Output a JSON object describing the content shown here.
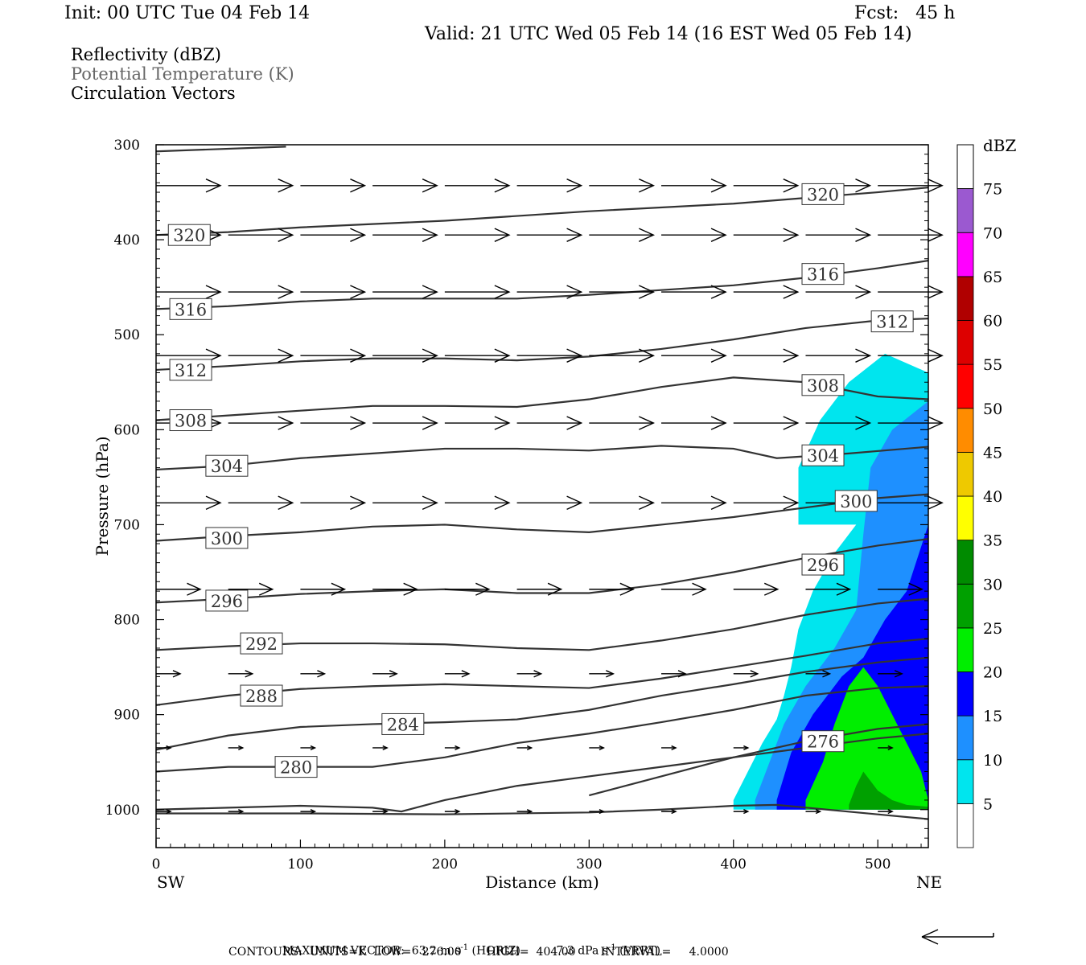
{
  "header": {
    "init": "Init: 00 UTC Tue 04 Feb 14",
    "fcst": "Fcst:   45 h",
    "valid": "Valid: 21 UTC Wed 05 Feb 14 (16 EST Wed 05 Feb 14)"
  },
  "fields": [
    "Reflectivity (dBZ)",
    "Potential Temperature (K)",
    "Circulation Vectors"
  ],
  "footer": {
    "max_vector_label": "MAXIMUM VECTOR:",
    "horiz": "63.2 m s",
    "horiz_unit": "(HORIZ)",
    "vert": "7.3 dPa s",
    "vert_unit": "(VERT)",
    "contours": "CONTOURS:  UNITS=K  LOW=   276.00       HIGH=  404.00       INTERVAL=     4.0000"
  },
  "colors": {
    "contour": "#333333",
    "scale": [
      "#ffffff",
      "#00e5ee",
      "#1e90ff",
      "#0000ff",
      "#00ee00",
      "#00a000",
      "#008b00",
      "#ffff00",
      "#eec900",
      "#ff8c00",
      "#ff0000",
      "#dd0000",
      "#b00000",
      "#ff00ff",
      "#9b59d0"
    ]
  },
  "chart_data": {
    "type": "cross-section",
    "xlabel": "Distance (km)",
    "ylabel": "Pressure (hPa)",
    "xlim": [
      0,
      535
    ],
    "ylim": [
      300,
      1040
    ],
    "x_ticks": [
      0,
      100,
      200,
      300,
      400,
      500
    ],
    "y_ticks": [
      300,
      400,
      500,
      600,
      700,
      800,
      900,
      1000
    ],
    "x_end_labels": [
      "SW",
      "NE"
    ],
    "colorbar": {
      "unit": "dBZ",
      "levels": [
        5,
        10,
        15,
        20,
        25,
        30,
        35,
        40,
        45,
        50,
        55,
        60,
        65,
        70,
        75
      ]
    },
    "isentropes": [
      {
        "label": "320",
        "x": [
          0,
          50,
          100,
          200,
          300,
          400,
          500,
          535
        ],
        "p": [
          395,
          392,
          387,
          380,
          370,
          362,
          350,
          345
        ],
        "label_x": 23,
        "label_p": 395
      },
      {
        "label": "320",
        "x": [
          450
        ],
        "p": [
          352
        ],
        "label_x": 462,
        "label_p": 352
      },
      {
        "label": "316",
        "x": [
          0,
          50,
          100,
          150,
          200,
          250,
          300,
          350,
          400,
          450,
          500,
          535
        ],
        "p": [
          473,
          470,
          465,
          462,
          462,
          462,
          458,
          453,
          448,
          440,
          430,
          422
        ],
        "label_x": 24,
        "label_p": 473
      },
      {
        "label": "316",
        "x": [
          462
        ],
        "p": [
          436
        ],
        "label_x": 462,
        "label_p": 436
      },
      {
        "label": "312",
        "x": [
          0,
          50,
          100,
          150,
          200,
          250,
          300,
          350,
          400,
          450,
          500,
          535
        ],
        "p": [
          537,
          533,
          528,
          525,
          525,
          527,
          523,
          515,
          505,
          493,
          485,
          483
        ],
        "label_x": 24,
        "label_p": 537
      },
      {
        "label": "312",
        "x": [
          510
        ],
        "p": [
          486
        ],
        "label_x": 510,
        "label_p": 486
      },
      {
        "label": "308",
        "x": [
          0,
          50,
          100,
          150,
          200,
          250,
          300,
          350,
          400,
          450,
          500,
          535
        ],
        "p": [
          590,
          585,
          580,
          575,
          575,
          576,
          568,
          555,
          545,
          550,
          565,
          568
        ],
        "label_x": 24,
        "label_p": 590
      },
      {
        "label": "308",
        "x": [
          462
        ],
        "p": [
          553
        ],
        "label_x": 462,
        "label_p": 553
      },
      {
        "label": "304",
        "x": [
          0,
          50,
          100,
          150,
          200,
          250,
          300,
          350,
          400,
          430,
          480,
          535
        ],
        "p": [
          642,
          638,
          630,
          625,
          620,
          620,
          622,
          617,
          620,
          630,
          625,
          618
        ],
        "label_x": 49,
        "label_p": 638
      },
      {
        "label": "304",
        "x": [
          462
        ],
        "p": [
          627
        ],
        "label_x": 462,
        "label_p": 627
      },
      {
        "label": "300",
        "x": [
          0,
          50,
          100,
          150,
          200,
          250,
          300,
          350,
          400,
          450,
          500,
          535
        ],
        "p": [
          717,
          712,
          708,
          702,
          700,
          705,
          708,
          700,
          692,
          682,
          672,
          668
        ],
        "label_x": 49,
        "label_p": 714
      },
      {
        "label": "300",
        "x": [
          485
        ],
        "p": [
          675
        ],
        "label_x": 485,
        "label_p": 675
      },
      {
        "label": "296",
        "x": [
          0,
          50,
          100,
          150,
          200,
          250,
          300,
          350,
          400,
          450,
          500,
          535
        ],
        "p": [
          782,
          778,
          773,
          770,
          768,
          772,
          772,
          763,
          750,
          735,
          722,
          715
        ],
        "label_x": 49,
        "label_p": 780
      },
      {
        "label": "296",
        "x": [
          462
        ],
        "p": [
          742
        ],
        "label_x": 462,
        "label_p": 742
      },
      {
        "label": "292",
        "x": [
          0,
          50,
          100,
          150,
          200,
          250,
          300,
          350,
          400,
          450,
          500,
          535
        ],
        "p": [
          832,
          828,
          825,
          825,
          826,
          830,
          832,
          822,
          810,
          795,
          783,
          778
        ],
        "label_x": 73,
        "label_p": 825
      },
      {
        "label": "288",
        "x": [
          0,
          50,
          100,
          150,
          200,
          250,
          300,
          350,
          400,
          450,
          500,
          535
        ],
        "p": [
          890,
          880,
          873,
          870,
          868,
          870,
          872,
          862,
          850,
          838,
          825,
          820
        ],
        "label_x": 73,
        "label_p": 880
      },
      {
        "label": "284",
        "x": [
          0,
          50,
          100,
          150,
          200,
          250,
          300,
          350,
          400,
          450,
          500,
          535
        ],
        "p": [
          937,
          922,
          913,
          910,
          908,
          905,
          895,
          880,
          868,
          855,
          845,
          840
        ],
        "label_x": 171,
        "label_p": 910
      },
      {
        "label": "280",
        "x": [
          0,
          50,
          100,
          150,
          200,
          250,
          300,
          350,
          400,
          450,
          500,
          535
        ],
        "p": [
          960,
          955,
          955,
          955,
          945,
          930,
          920,
          908,
          895,
          880,
          872,
          870
        ],
        "label_x": 97,
        "label_p": 955
      },
      {
        "label": "276",
        "x": [
          300,
          350,
          400,
          450,
          500,
          535
        ],
        "p": [
          985,
          965,
          945,
          928,
          915,
          910
        ],
        "label_x": 462,
        "label_p": 928
      },
      {
        "label": "",
        "x": [
          0,
          50,
          100,
          150,
          170,
          200,
          250,
          300,
          350,
          400,
          450,
          500,
          535
        ],
        "p": [
          1000,
          998,
          996,
          998,
          1002,
          990,
          975,
          965,
          955,
          945,
          935,
          925,
          920
        ]
      },
      {
        "label": "",
        "x": [
          0,
          100,
          200,
          300,
          350,
          400,
          430,
          500,
          535
        ],
        "p": [
          1004,
          1004,
          1005,
          1003,
          1000,
          996,
          995,
          1005,
          1010
        ]
      }
    ],
    "isentrope_top": {
      "x": [
        0,
        90
      ],
      "p": [
        307,
        302
      ]
    },
    "reflectivity_regions": [
      {
        "level": 5,
        "color": "#00e5ee",
        "x": [
          400,
          410,
          420,
          430,
          435,
          440,
          445,
          455,
          470,
          490,
          510,
          535,
          535,
          400
        ],
        "p": [
          990,
          960,
          930,
          905,
          880,
          850,
          810,
          770,
          730,
          690,
          630,
          540,
          1000,
          1000
        ]
      },
      {
        "level": 5,
        "color": "#00e5ee",
        "x": [
          445,
          460,
          480,
          505,
          535,
          535,
          445
        ],
        "p": [
          640,
          590,
          550,
          520,
          540,
          700,
          700
        ]
      },
      {
        "level": 10,
        "color": "#1e90ff",
        "x": [
          415,
          425,
          435,
          450,
          470,
          485,
          490,
          495,
          510,
          535,
          535,
          415
        ],
        "p": [
          990,
          950,
          910,
          870,
          830,
          790,
          710,
          640,
          600,
          570,
          1000,
          1000
        ]
      },
      {
        "level": 15,
        "color": "#0000ff",
        "x": [
          430,
          440,
          455,
          475,
          490,
          505,
          520,
          535,
          535,
          430
        ],
        "p": [
          990,
          940,
          900,
          860,
          840,
          800,
          770,
          700,
          1000,
          1000
        ]
      },
      {
        "level": 20,
        "color": "#00ee00",
        "x": [
          450,
          462,
          470,
          480,
          490,
          500,
          510,
          520,
          530,
          535,
          535,
          450
        ],
        "p": [
          990,
          950,
          910,
          870,
          850,
          870,
          900,
          930,
          960,
          990,
          1000,
          1000
        ]
      },
      {
        "level": 25,
        "color": "#00a000",
        "x": [
          480,
          485,
          490,
          500,
          510,
          520,
          535,
          535,
          480
        ],
        "p": [
          995,
          975,
          960,
          980,
          990,
          995,
          997,
          1000,
          1000
        ]
      }
    ],
    "vector_rows_p": [
      343,
      395,
      455,
      522,
      593,
      677,
      768,
      857,
      935,
      1002
    ],
    "vector_x": [
      0,
      50,
      100,
      150,
      200,
      250,
      300,
      350,
      400,
      450,
      500
    ]
  }
}
